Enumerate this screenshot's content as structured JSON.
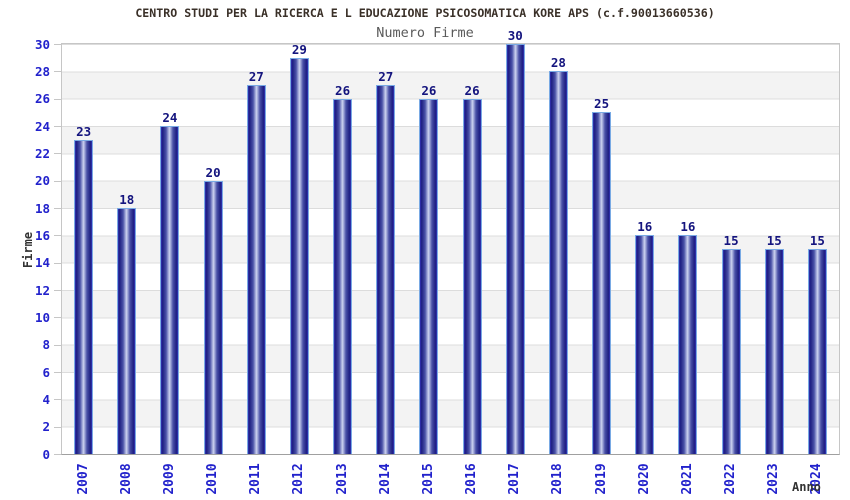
{
  "chart_data": {
    "type": "bar",
    "title": "CENTRO STUDI PER LA RICERCA E L EDUCAZIONE PSICOSOMATICA KORE APS (c.f.90013660536)",
    "subtitle": "Numero Firme",
    "xlabel": "Anno",
    "ylabel": "Firme",
    "categories": [
      "2007",
      "2008",
      "2009",
      "2010",
      "2011",
      "2012",
      "2013",
      "2014",
      "2015",
      "2016",
      "2017",
      "2018",
      "2019",
      "2020",
      "2021",
      "2022",
      "2023",
      "2024"
    ],
    "values": [
      23,
      18,
      24,
      20,
      27,
      29,
      26,
      27,
      26,
      26,
      30,
      28,
      25,
      16,
      16,
      15,
      15,
      15
    ],
    "ylim": [
      0,
      30
    ],
    "ytick_step": 2,
    "grid": true,
    "band_stripes": true,
    "legend": "none",
    "colors": {
      "title": "#3a3028",
      "subtitle": "#5a5a5a",
      "axis_text": "#2222cc",
      "axis_label": "#333333",
      "value_label": "#14147e",
      "bar_edge": "#3434b8",
      "bar_dark": "#1d1d80",
      "bar_mid": "#4a52a8",
      "bar_light": "#cdd3f0",
      "bar_border": "#79aae4",
      "grid_line": "#dcdcdc",
      "band": "#f3f3f3",
      "plot_border": "#c6c6c6"
    }
  }
}
